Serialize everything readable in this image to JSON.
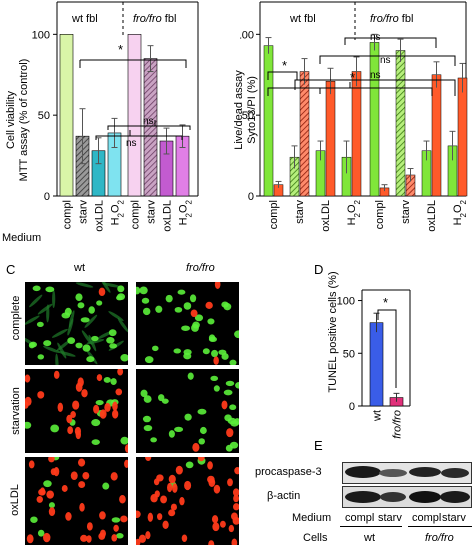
{
  "panelA": {
    "group_wt": "wt fbl",
    "group_fro_italic": "fro/fro",
    "group_fro_suffix": " fbl",
    "ylabel_line1": "Cell viability",
    "ylabel_line2": "MTT assay (% of control)",
    "yticks": [
      "0",
      "50",
      "100"
    ],
    "medium_label": "Medium",
    "categories": [
      "compl",
      "starv",
      "oxLDL",
      "H2O2",
      "compl",
      "starv",
      "oxLDL",
      "H2O2"
    ],
    "sig_star": "*",
    "ns1": "ns",
    "ns2": "ns"
  },
  "panelB": {
    "group_wt": "wt fbl",
    "group_fro_italic": "fro/fro",
    "group_fro_suffix": " fbl",
    "ylabel_line1": "Live/dead assay",
    "ylabel_line2": "Syto13/PI (%)",
    "yticks": [
      "0",
      "50",
      "100"
    ],
    "categories": [
      "compl",
      "starv",
      "oxLDL",
      "H2O2",
      "compl",
      "starv",
      "oxLDL",
      "H2O2"
    ],
    "sig1": "*",
    "sig2": "*",
    "ns1": "ns",
    "ns2": "ns",
    "ns3": "ns"
  },
  "panelC": {
    "letter": "C",
    "col_wt": "wt",
    "col_fro": "fro/fro",
    "rows": [
      "complete",
      "starvation",
      "oxLDL"
    ]
  },
  "panelD": {
    "letter": "D",
    "ylabel": "TUNEL positive cells (%)",
    "yticks": [
      "0",
      "50",
      "100"
    ],
    "categories": [
      "wt",
      "fro/fro"
    ],
    "sig": "*"
  },
  "panelE": {
    "letter": "E",
    "procaspase": "procaspase-3",
    "actin": "β-actin",
    "medium_label": "Medium",
    "medium_values": [
      "compl",
      "starv",
      "compl",
      "starv"
    ],
    "cells_label": "Cells",
    "cells_values": [
      "wt",
      "fro/fro"
    ]
  },
  "chart_data": [
    {
      "type": "bar",
      "categories": [
        "compl",
        "starv",
        "oxLDL",
        "H2O2",
        "compl",
        "starv",
        "oxLDL",
        "H2O2"
      ],
      "groups": [
        "wt fbl",
        "fro/fro fbl"
      ],
      "values": [
        100,
        37,
        28,
        39,
        100,
        85,
        34,
        37
      ],
      "errors": [
        0,
        17,
        8,
        9,
        0,
        8,
        8,
        7
      ],
      "ylabel": "Cell viability MTT assay (% of control)",
      "ylim": [
        0,
        120
      ],
      "colors": [
        "#d9f5a8",
        "#7a7a7a",
        "#2fb7c6",
        "#7fe3f0",
        "#f7d2f0",
        "#b07aa7",
        "#c35bd0",
        "#e07fe6"
      ]
    },
    {
      "type": "bar",
      "categories": [
        "compl",
        "starv",
        "oxLDL",
        "H2O2",
        "compl",
        "starv",
        "oxLDL",
        "H2O2"
      ],
      "groups": [
        "wt fbl",
        "fro/fro fbl"
      ],
      "series": [
        {
          "name": "Syto13",
          "values": [
            93,
            24,
            28,
            24,
            95,
            90,
            28,
            31
          ]
        },
        {
          "name": "PI",
          "values": [
            7,
            77,
            71,
            77,
            5,
            13,
            75,
            73
          ]
        }
      ],
      "errors_syto13": [
        5,
        7,
        6,
        10,
        5,
        7,
        6,
        9
      ],
      "errors_pi": [
        2,
        8,
        8,
        9,
        2,
        4,
        8,
        9
      ],
      "ylabel": "Live/dead assay Syto13/PI (%)",
      "ylim": [
        0,
        120
      ],
      "colors": {
        "Syto13": "#80e63a",
        "PI": "#ff5a2a"
      }
    },
    {
      "type": "bar",
      "categories": [
        "wt",
        "fro/fro"
      ],
      "values": [
        79,
        8
      ],
      "errors": [
        9,
        4
      ],
      "ylabel": "TUNEL positive cells (%)",
      "ylim": [
        0,
        110
      ],
      "colors": [
        "#3a5de8",
        "#e0307a"
      ]
    }
  ]
}
